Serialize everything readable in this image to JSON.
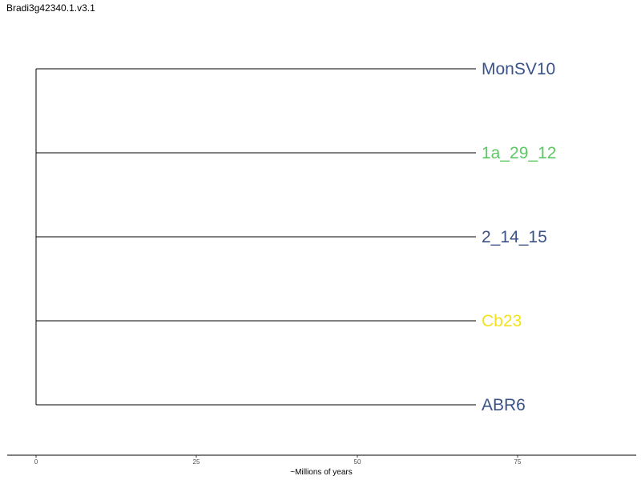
{
  "title": "Bradi3g42340.1.v3.1",
  "tree": {
    "leaves": [
      {
        "name": "MonSV10",
        "color": "#3b5289"
      },
      {
        "name": "1a_29_12",
        "color": "#5cc863"
      },
      {
        "name": "2_14_15",
        "color": "#3b5289"
      },
      {
        "name": "Cb23",
        "color": "#f2e31c"
      },
      {
        "name": "ABR6",
        "color": "#3b5289"
      }
    ],
    "x_axis": {
      "label": "~Millions of years",
      "ticks": [
        {
          "value": 0,
          "label": "0"
        },
        {
          "value": 25,
          "label": "25"
        },
        {
          "value": 50,
          "label": "50"
        },
        {
          "value": 75,
          "label": "75"
        }
      ]
    }
  }
}
